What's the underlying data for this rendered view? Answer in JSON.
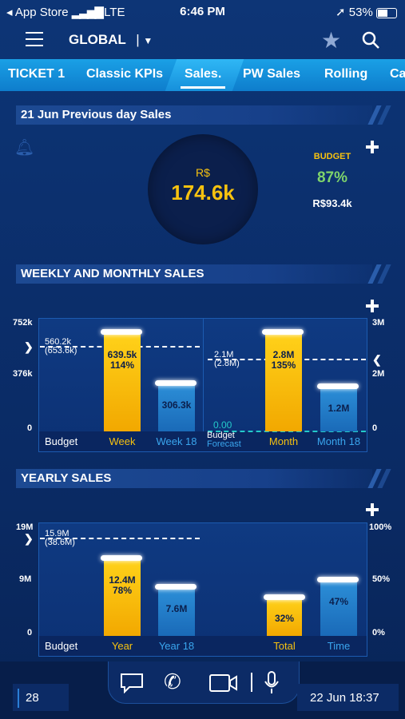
{
  "status": {
    "carrier": "App Store",
    "network": "LTE",
    "time": "6:46 PM",
    "battery": "53%"
  },
  "header": {
    "scope": "GLOBAL"
  },
  "tabs": [
    "TICKET 1",
    "Classic KPIs",
    "Sales.",
    "PW Sales",
    "Rolling",
    "Ca"
  ],
  "active_tab": "Sales.",
  "daily": {
    "title": "21 Jun Previous day Sales",
    "currency": "R$",
    "value": "174.6k",
    "budget_label": "BUDGET",
    "budget_pct": "87%",
    "budget_value": "R$93.4k"
  },
  "weekly": {
    "title": "WEEKLY AND MONTHLY SALES",
    "left_axis": [
      "752k",
      "376k",
      "0"
    ],
    "right_axis": [
      "3M",
      "2M",
      "0"
    ],
    "budget_week_line": "560.2k",
    "budget_week_line2": "(653.6k)",
    "budget_month_line": "2.1M",
    "budget_month_line2": "(2.8M)",
    "forecast_value": "0.00",
    "week_val": "639.5k",
    "week_pct": "114%",
    "week18_val": "306.3k",
    "month_val": "2.8M",
    "month_pct": "135%",
    "month18_val": "1.2M",
    "labels": {
      "budget": "Budget",
      "week": "Week",
      "week18": "Week 18",
      "budget2": "Budget",
      "forecast": "Forecast",
      "month": "Month",
      "month18": "Month 18"
    }
  },
  "yearly": {
    "title": "YEARLY SALES",
    "left_axis": [
      "19M",
      "9M",
      "0"
    ],
    "right_axis": [
      "100%",
      "50%",
      "0%"
    ],
    "budget_line": "15.9M",
    "budget_line2": "(38.6M)",
    "year_val": "12.4M",
    "year_pct": "78%",
    "year18_val": "7.6M",
    "total_val": "32%",
    "time_val": "47%",
    "labels": {
      "budget": "Budget",
      "year": "Year",
      "year18": "Year 18",
      "total": "Total",
      "time": "Time"
    }
  },
  "footer": {
    "page": "28",
    "datetime": "22 Jun 18:37"
  },
  "colors": {
    "accent": "#1aa0e6",
    "yellow": "#f7c20f",
    "blue_bar": "#2a8fd6",
    "budget_green": "#7fd46b"
  }
}
